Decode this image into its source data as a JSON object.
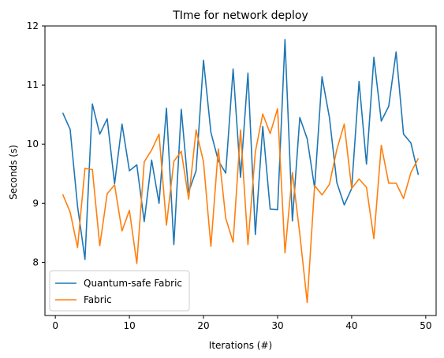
{
  "chart_data": {
    "type": "line",
    "title": "TIme for network deploy",
    "xlabel": "Iterations (#)",
    "ylabel": "Seconds (s)",
    "xlim": [
      -1.4,
      51.4
    ],
    "ylim": [
      7.1,
      12.0
    ],
    "xticks": [
      0,
      10,
      20,
      30,
      40,
      50
    ],
    "yticks": [
      8,
      9,
      10,
      11,
      12
    ],
    "grid": false,
    "legend_position": "lower-left",
    "x": [
      1,
      2,
      3,
      4,
      5,
      6,
      7,
      8,
      9,
      10,
      11,
      12,
      13,
      14,
      15,
      16,
      17,
      18,
      19,
      20,
      21,
      22,
      23,
      24,
      25,
      26,
      27,
      28,
      29,
      30,
      31,
      32,
      33,
      34,
      35,
      36,
      37,
      38,
      39,
      40,
      41,
      42,
      43,
      44,
      45,
      46,
      47,
      48,
      49
    ],
    "series": [
      {
        "name": "Quantum-safe Fabric",
        "color": "#1f77b4",
        "values": [
          10.53,
          10.25,
          8.95,
          8.05,
          10.68,
          10.17,
          10.43,
          9.33,
          10.34,
          9.55,
          9.65,
          8.69,
          9.73,
          9.0,
          10.61,
          8.3,
          10.59,
          9.19,
          9.55,
          11.42,
          10.2,
          9.72,
          9.51,
          11.27,
          9.44,
          11.2,
          8.47,
          10.3,
          8.9,
          8.89,
          11.77,
          8.7,
          10.45,
          10.09,
          9.26,
          11.14,
          10.45,
          9.35,
          8.97,
          9.25,
          11.06,
          9.66,
          11.47,
          10.39,
          10.64,
          11.56,
          10.17,
          10.02,
          9.48
        ]
      },
      {
        "name": "Fabric",
        "color": "#ff7f0e",
        "values": [
          9.15,
          8.85,
          8.25,
          9.59,
          9.57,
          8.28,
          9.16,
          9.31,
          8.53,
          8.88,
          7.98,
          9.7,
          9.9,
          10.17,
          8.63,
          9.71,
          9.88,
          9.07,
          10.24,
          9.7,
          8.27,
          9.92,
          8.75,
          8.34,
          10.24,
          8.3,
          9.87,
          10.51,
          10.18,
          10.6,
          8.16,
          9.52,
          8.48,
          7.32,
          9.3,
          9.14,
          9.32,
          9.91,
          10.34,
          9.25,
          9.41,
          9.27,
          8.4,
          9.98,
          9.34,
          9.34,
          9.08,
          9.52,
          9.76
        ]
      }
    ]
  }
}
